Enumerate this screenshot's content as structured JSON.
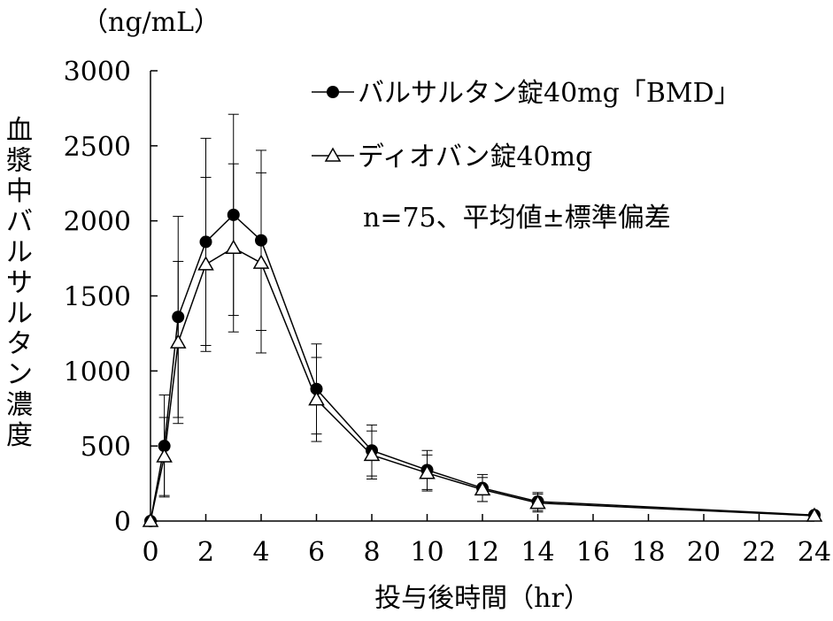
{
  "chart_data": {
    "type": "line",
    "y_unit": "（ng/mL）",
    "xlabel": "投与後時間（hr）",
    "ylabel": "血漿中バルサルタン濃度",
    "note": "n=75、平均値±標準偏差",
    "xlim": [
      0,
      24
    ],
    "ylim": [
      0,
      3000
    ],
    "xticks": [
      "0",
      "2",
      "4",
      "6",
      "8",
      "10",
      "12",
      "14",
      "16",
      "18",
      "20",
      "22",
      "24"
    ],
    "yticks": [
      "0",
      "500",
      "1000",
      "1500",
      "2000",
      "2500",
      "3000"
    ],
    "grid": false,
    "legend_position": "top-right",
    "series": [
      {
        "name": "バルサルタン錠40mg「BMD」",
        "marker": "filled-circle",
        "x": [
          0,
          0.5,
          1,
          2,
          3,
          4,
          6,
          8,
          10,
          12,
          14,
          24
        ],
        "y": [
          0,
          500,
          1360,
          1860,
          2040,
          1870,
          880,
          470,
          340,
          220,
          130,
          40
        ],
        "sd": [
          0,
          340,
          670,
          690,
          670,
          600,
          300,
          170,
          130,
          90,
          60,
          15
        ]
      },
      {
        "name": "ディオバン錠40mg",
        "marker": "open-triangle",
        "x": [
          0,
          0.5,
          1,
          2,
          3,
          4,
          6,
          8,
          10,
          12,
          14,
          24
        ],
        "y": [
          0,
          430,
          1190,
          1710,
          1820,
          1720,
          810,
          440,
          320,
          210,
          120,
          35
        ],
        "sd": [
          0,
          260,
          540,
          580,
          560,
          600,
          280,
          160,
          120,
          80,
          60,
          15
        ]
      }
    ]
  }
}
